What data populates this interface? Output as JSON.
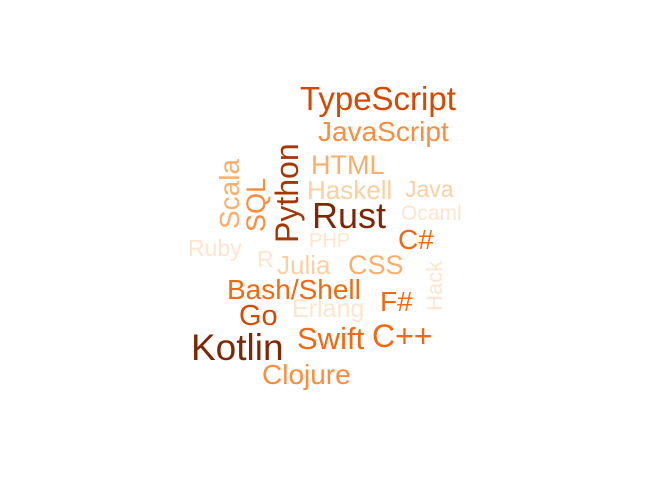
{
  "palette": {
    "dark_brown": "#7f2704",
    "deep_orange": "#a63603",
    "orange_red": "#d94801",
    "orange": "#f16913",
    "light_orange": "#fd8d3c",
    "peach": "#fdae6b",
    "pale_peach": "#fdd0a2",
    "very_pale_peach": "#fee6ce"
  },
  "words": [
    {
      "text": "TypeScript",
      "color": "#d94801"
    },
    {
      "text": "JavaScript",
      "color": "#fd8d3c"
    },
    {
      "text": "Python",
      "color": "#a63603"
    },
    {
      "text": "HTML",
      "color": "#fdae6b"
    },
    {
      "text": "Scala",
      "color": "#fdae6b"
    },
    {
      "text": "SQL",
      "color": "#fd8d3c"
    },
    {
      "text": "Haskell",
      "color": "#fdd0a2"
    },
    {
      "text": "Java",
      "color": "#fdd0a2"
    },
    {
      "text": "Rust",
      "color": "#7f2704"
    },
    {
      "text": "Ocaml",
      "color": "#fee6ce"
    },
    {
      "text": "Ruby",
      "color": "#fee6ce"
    },
    {
      "text": "PHP",
      "color": "#fee6ce"
    },
    {
      "text": "C#",
      "color": "#f16913"
    },
    {
      "text": "R",
      "color": "#fee6ce"
    },
    {
      "text": "Julia",
      "color": "#fdd0a2"
    },
    {
      "text": "CSS",
      "color": "#fdae6b"
    },
    {
      "text": "Hack",
      "color": "#fee6ce"
    },
    {
      "text": "Bash/Shell",
      "color": "#f16913"
    },
    {
      "text": "F#",
      "color": "#f16913"
    },
    {
      "text": "Go",
      "color": "#d94801"
    },
    {
      "text": "Erlang",
      "color": "#fee6ce"
    },
    {
      "text": "Kotlin",
      "color": "#7f2704"
    },
    {
      "text": "Swift",
      "color": "#f16913"
    },
    {
      "text": "C++",
      "color": "#f16913"
    },
    {
      "text": "Clojure",
      "color": "#fd8d3c"
    }
  ]
}
